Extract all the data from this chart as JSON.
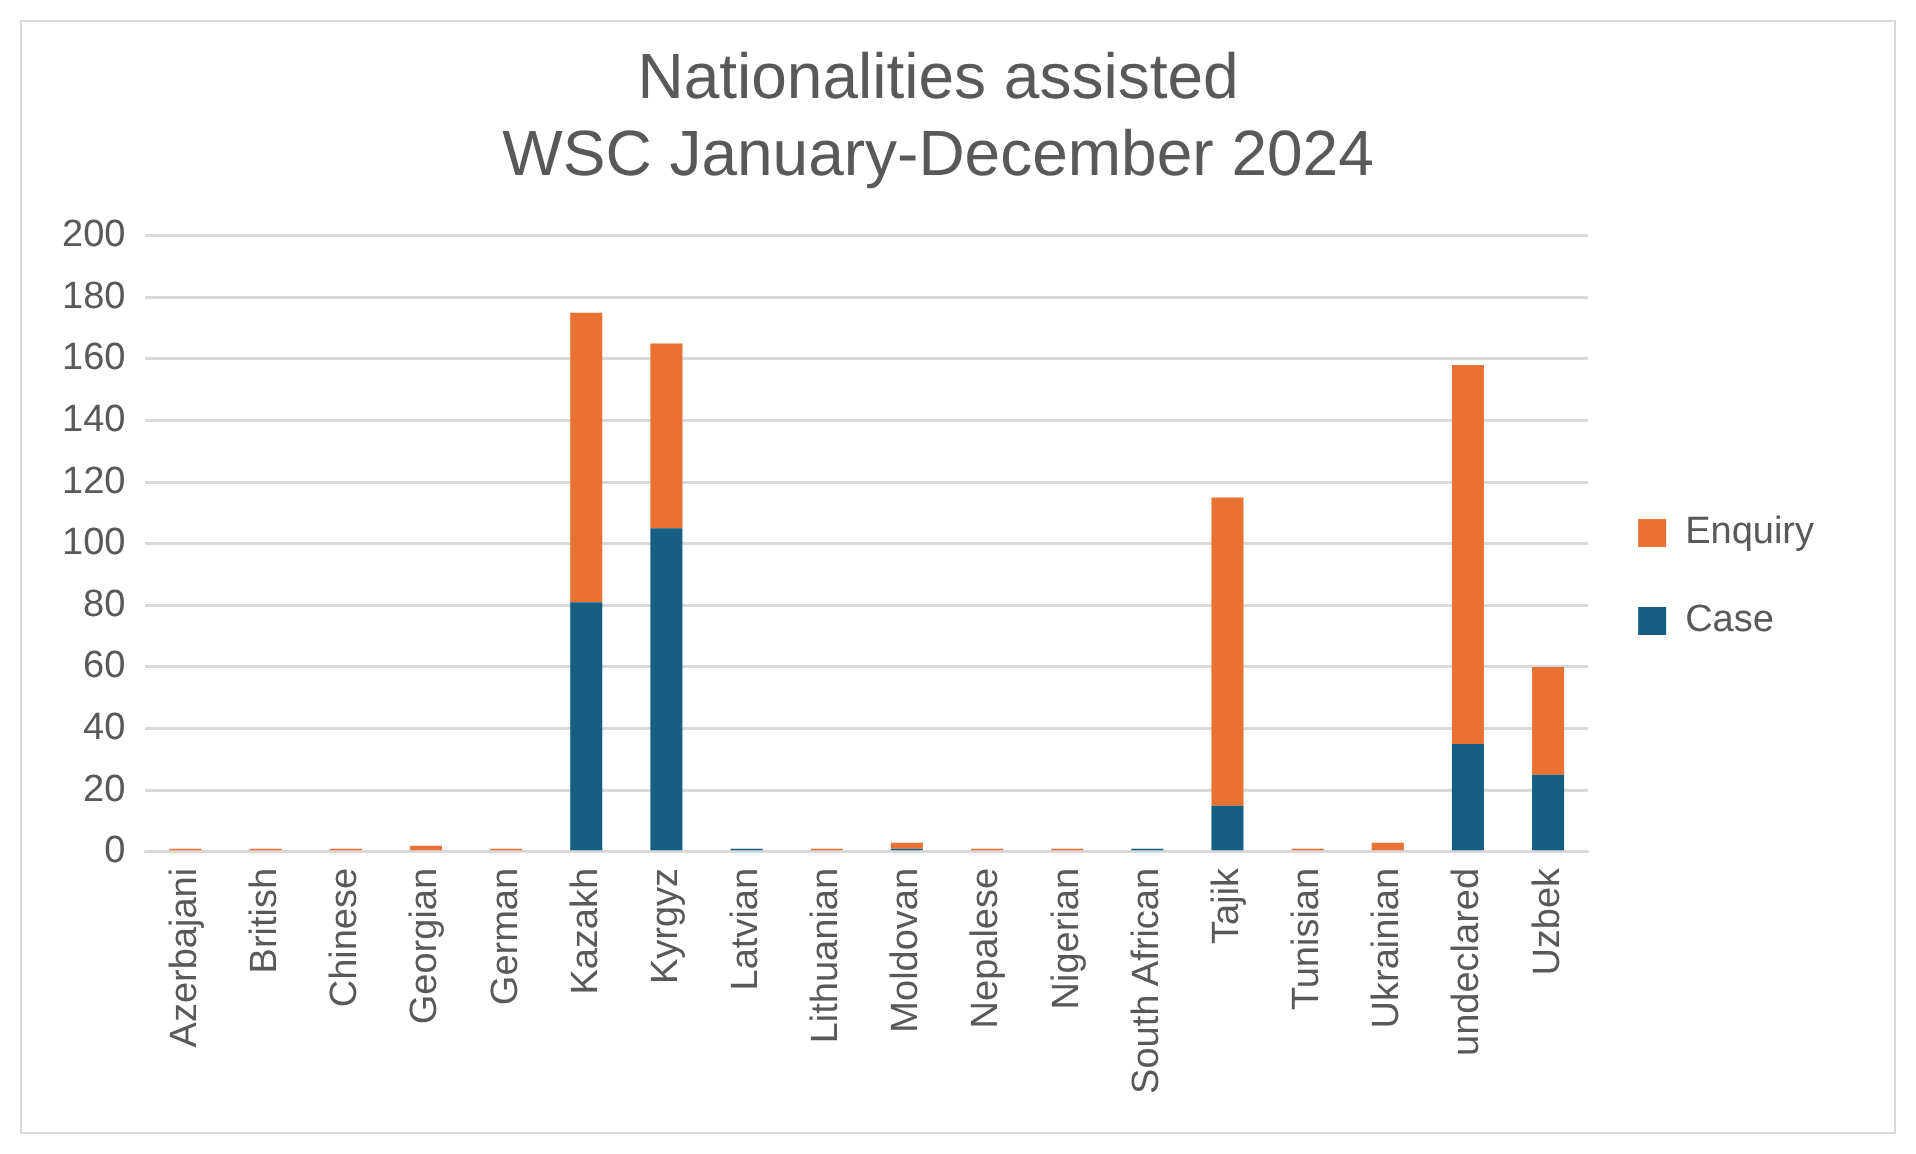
{
  "chart_data": {
    "type": "bar",
    "title": "Nationalities assisted\nWSC January-December 2024",
    "categories": [
      "Azerbajani",
      "British",
      "Chinese",
      "Georgian",
      "German",
      "Kazakh",
      "Kyrgyz",
      "Latvian",
      "Lithuanian",
      "Moldovan",
      "Nepalese",
      "Nigerian",
      "South African",
      "Tajik",
      "Tunisian",
      "Ukrainian",
      "undeclared",
      "Uzbek"
    ],
    "series": [
      {
        "name": "Case",
        "color": "#156082",
        "values": [
          0,
          0,
          0,
          0,
          0,
          81,
          105,
          1,
          0,
          1,
          0,
          0,
          1,
          15,
          0,
          0,
          35,
          25
        ]
      },
      {
        "name": "Enquiry",
        "color": "#e97132",
        "values": [
          1,
          1,
          1,
          2,
          1,
          94,
          60,
          0,
          1,
          2,
          1,
          1,
          0,
          100,
          1,
          3,
          123,
          35
        ]
      }
    ],
    "stacked": true,
    "ylim": [
      0,
      200
    ],
    "yticks": [
      0,
      20,
      40,
      60,
      80,
      100,
      120,
      140,
      160,
      180,
      200
    ],
    "grid": "y",
    "legend": "right"
  }
}
